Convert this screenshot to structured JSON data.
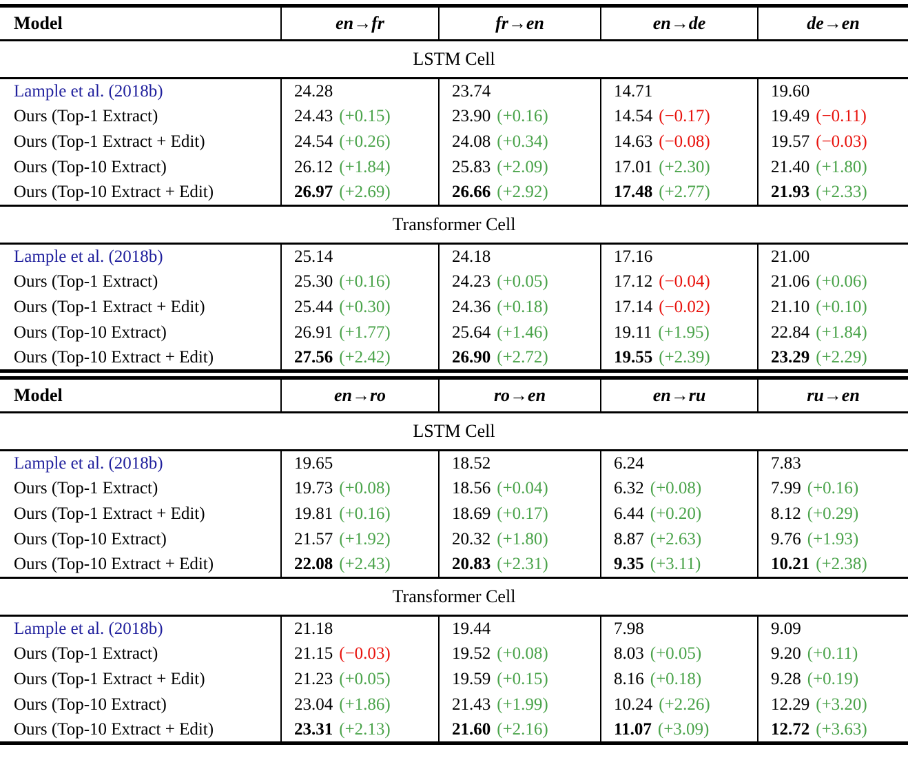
{
  "colors": {
    "positive": "#4aa34a",
    "negative": "#e8120c",
    "citation": "#20209d",
    "rule": "#000000"
  },
  "tables": [
    {
      "columns": [
        "Model",
        "en→fr",
        "fr→en",
        "en→de",
        "de→en"
      ],
      "sections": [
        {
          "title": "LSTM Cell",
          "rows": [
            {
              "model": "Lample et al. (2018b)",
              "citation": true,
              "cells": [
                {
                  "score": "24.28"
                },
                {
                  "score": "23.74"
                },
                {
                  "score": "14.71"
                },
                {
                  "score": "19.60"
                }
              ]
            },
            {
              "model": "Ours (Top-1 Extract)",
              "cells": [
                {
                  "score": "24.43",
                  "delta": "(+0.15)",
                  "trend": "up"
                },
                {
                  "score": "23.90",
                  "delta": "(+0.16)",
                  "trend": "up"
                },
                {
                  "score": "14.54",
                  "delta": "(−0.17)",
                  "trend": "down"
                },
                {
                  "score": "19.49",
                  "delta": "(−0.11)",
                  "trend": "down"
                }
              ]
            },
            {
              "model": "Ours (Top-1 Extract + Edit)",
              "cells": [
                {
                  "score": "24.54",
                  "delta": "(+0.26)",
                  "trend": "up"
                },
                {
                  "score": "24.08",
                  "delta": "(+0.34)",
                  "trend": "up"
                },
                {
                  "score": "14.63",
                  "delta": "(−0.08)",
                  "trend": "down"
                },
                {
                  "score": "19.57",
                  "delta": "(−0.03)",
                  "trend": "down"
                }
              ]
            },
            {
              "model": "Ours (Top-10 Extract)",
              "cells": [
                {
                  "score": "26.12",
                  "delta": "(+1.84)",
                  "trend": "up"
                },
                {
                  "score": "25.83",
                  "delta": "(+2.09)",
                  "trend": "up"
                },
                {
                  "score": "17.01",
                  "delta": "(+2.30)",
                  "trend": "up"
                },
                {
                  "score": "21.40",
                  "delta": "(+1.80)",
                  "trend": "up"
                }
              ]
            },
            {
              "model": "Ours (Top-10 Extract + Edit)",
              "cells": [
                {
                  "score": "26.97",
                  "bold": true,
                  "delta": "(+2.69)",
                  "trend": "up"
                },
                {
                  "score": "26.66",
                  "bold": true,
                  "delta": "(+2.92)",
                  "trend": "up"
                },
                {
                  "score": "17.48",
                  "bold": true,
                  "delta": "(+2.77)",
                  "trend": "up"
                },
                {
                  "score": "21.93",
                  "bold": true,
                  "delta": "(+2.33)",
                  "trend": "up"
                }
              ]
            }
          ]
        },
        {
          "title": "Transformer Cell",
          "rows": [
            {
              "model": "Lample et al. (2018b)",
              "citation": true,
              "cells": [
                {
                  "score": "25.14"
                },
                {
                  "score": "24.18"
                },
                {
                  "score": "17.16"
                },
                {
                  "score": "21.00"
                }
              ]
            },
            {
              "model": "Ours (Top-1 Extract)",
              "cells": [
                {
                  "score": "25.30",
                  "delta": "(+0.16)",
                  "trend": "up"
                },
                {
                  "score": "24.23",
                  "delta": "(+0.05)",
                  "trend": "up"
                },
                {
                  "score": "17.12",
                  "delta": "(−0.04)",
                  "trend": "down"
                },
                {
                  "score": "21.06",
                  "delta": "(+0.06)",
                  "trend": "up"
                }
              ]
            },
            {
              "model": "Ours (Top-1 Extract + Edit)",
              "cells": [
                {
                  "score": "25.44",
                  "delta": "(+0.30)",
                  "trend": "up"
                },
                {
                  "score": "24.36",
                  "delta": "(+0.18)",
                  "trend": "up"
                },
                {
                  "score": "17.14",
                  "delta": "(−0.02)",
                  "trend": "down"
                },
                {
                  "score": "21.10",
                  "delta": "(+0.10)",
                  "trend": "up"
                }
              ]
            },
            {
              "model": "Ours (Top-10 Extract)",
              "cells": [
                {
                  "score": "26.91",
                  "delta": "(+1.77)",
                  "trend": "up"
                },
                {
                  "score": "25.64",
                  "delta": "(+1.46)",
                  "trend": "up"
                },
                {
                  "score": "19.11",
                  "delta": "(+1.95)",
                  "trend": "up"
                },
                {
                  "score": "22.84",
                  "delta": "(+1.84)",
                  "trend": "up"
                }
              ]
            },
            {
              "model": "Ours (Top-10 Extract + Edit)",
              "cells": [
                {
                  "score": "27.56",
                  "bold": true,
                  "delta": "(+2.42)",
                  "trend": "up"
                },
                {
                  "score": "26.90",
                  "bold": true,
                  "delta": "(+2.72)",
                  "trend": "up"
                },
                {
                  "score": "19.55",
                  "bold": true,
                  "delta": "(+2.39)",
                  "trend": "up"
                },
                {
                  "score": "23.29",
                  "bold": true,
                  "delta": "(+2.29)",
                  "trend": "up"
                }
              ]
            }
          ]
        }
      ]
    },
    {
      "columns": [
        "Model",
        "en→ro",
        "ro→en",
        "en→ru",
        "ru→en"
      ],
      "sections": [
        {
          "title": "LSTM Cell",
          "rows": [
            {
              "model": "Lample et al. (2018b)",
              "citation": true,
              "cells": [
                {
                  "score": "19.65"
                },
                {
                  "score": "18.52"
                },
                {
                  "score": "6.24"
                },
                {
                  "score": "7.83"
                }
              ]
            },
            {
              "model": "Ours (Top-1 Extract)",
              "cells": [
                {
                  "score": "19.73",
                  "delta": "(+0.08)",
                  "trend": "up"
                },
                {
                  "score": "18.56",
                  "delta": "(+0.04)",
                  "trend": "up"
                },
                {
                  "score": "6.32",
                  "delta": "(+0.08)",
                  "trend": "up"
                },
                {
                  "score": "7.99",
                  "delta": "(+0.16)",
                  "trend": "up"
                }
              ]
            },
            {
              "model": "Ours (Top-1 Extract + Edit)",
              "cells": [
                {
                  "score": "19.81",
                  "delta": "(+0.16)",
                  "trend": "up"
                },
                {
                  "score": "18.69",
                  "delta": "(+0.17)",
                  "trend": "up"
                },
                {
                  "score": "6.44",
                  "delta": "(+0.20)",
                  "trend": "up"
                },
                {
                  "score": "8.12",
                  "delta": "(+0.29)",
                  "trend": "up"
                }
              ]
            },
            {
              "model": "Ours (Top-10 Extract)",
              "cells": [
                {
                  "score": "21.57",
                  "delta": "(+1.92)",
                  "trend": "up"
                },
                {
                  "score": "20.32",
                  "delta": "(+1.80)",
                  "trend": "up"
                },
                {
                  "score": "8.87",
                  "delta": "(+2.63)",
                  "trend": "up"
                },
                {
                  "score": "9.76",
                  "delta": "(+1.93)",
                  "trend": "up"
                }
              ]
            },
            {
              "model": "Ours (Top-10 Extract + Edit)",
              "cells": [
                {
                  "score": "22.08",
                  "bold": true,
                  "delta": "(+2.43)",
                  "trend": "up"
                },
                {
                  "score": "20.83",
                  "bold": true,
                  "delta": "(+2.31)",
                  "trend": "up"
                },
                {
                  "score": "9.35",
                  "bold": true,
                  "delta": "(+3.11)",
                  "trend": "up"
                },
                {
                  "score": "10.21",
                  "bold": true,
                  "delta": "(+2.38)",
                  "trend": "up"
                }
              ]
            }
          ]
        },
        {
          "title": "Transformer Cell",
          "rows": [
            {
              "model": "Lample et al. (2018b)",
              "citation": true,
              "cells": [
                {
                  "score": "21.18"
                },
                {
                  "score": "19.44"
                },
                {
                  "score": "7.98"
                },
                {
                  "score": "9.09"
                }
              ]
            },
            {
              "model": "Ours (Top-1 Extract)",
              "cells": [
                {
                  "score": "21.15",
                  "delta": "(−0.03)",
                  "trend": "down"
                },
                {
                  "score": "19.52",
                  "delta": "(+0.08)",
                  "trend": "up"
                },
                {
                  "score": "8.03",
                  "delta": "(+0.05)",
                  "trend": "up"
                },
                {
                  "score": "9.20",
                  "delta": "(+0.11)",
                  "trend": "up"
                }
              ]
            },
            {
              "model": "Ours (Top-1 Extract + Edit)",
              "cells": [
                {
                  "score": "21.23",
                  "delta": "(+0.05)",
                  "trend": "up"
                },
                {
                  "score": "19.59",
                  "delta": "(+0.15)",
                  "trend": "up"
                },
                {
                  "score": "8.16",
                  "delta": "(+0.18)",
                  "trend": "up"
                },
                {
                  "score": "9.28",
                  "delta": "(+0.19)",
                  "trend": "up"
                }
              ]
            },
            {
              "model": "Ours (Top-10 Extract)",
              "cells": [
                {
                  "score": "23.04",
                  "delta": "(+1.86)",
                  "trend": "up"
                },
                {
                  "score": "21.43",
                  "delta": "(+1.99)",
                  "trend": "up"
                },
                {
                  "score": "10.24",
                  "delta": "(+2.26)",
                  "trend": "up"
                },
                {
                  "score": "12.29",
                  "delta": "(+3.20)",
                  "trend": "up"
                }
              ]
            },
            {
              "model": "Ours (Top-10 Extract + Edit)",
              "cells": [
                {
                  "score": "23.31",
                  "bold": true,
                  "delta": "(+2.13)",
                  "trend": "up"
                },
                {
                  "score": "21.60",
                  "bold": true,
                  "delta": "(+2.16)",
                  "trend": "up"
                },
                {
                  "score": "11.07",
                  "bold": true,
                  "delta": "(+3.09)",
                  "trend": "up"
                },
                {
                  "score": "12.72",
                  "bold": true,
                  "delta": "(+3.63)",
                  "trend": "up"
                }
              ]
            }
          ]
        }
      ]
    }
  ]
}
